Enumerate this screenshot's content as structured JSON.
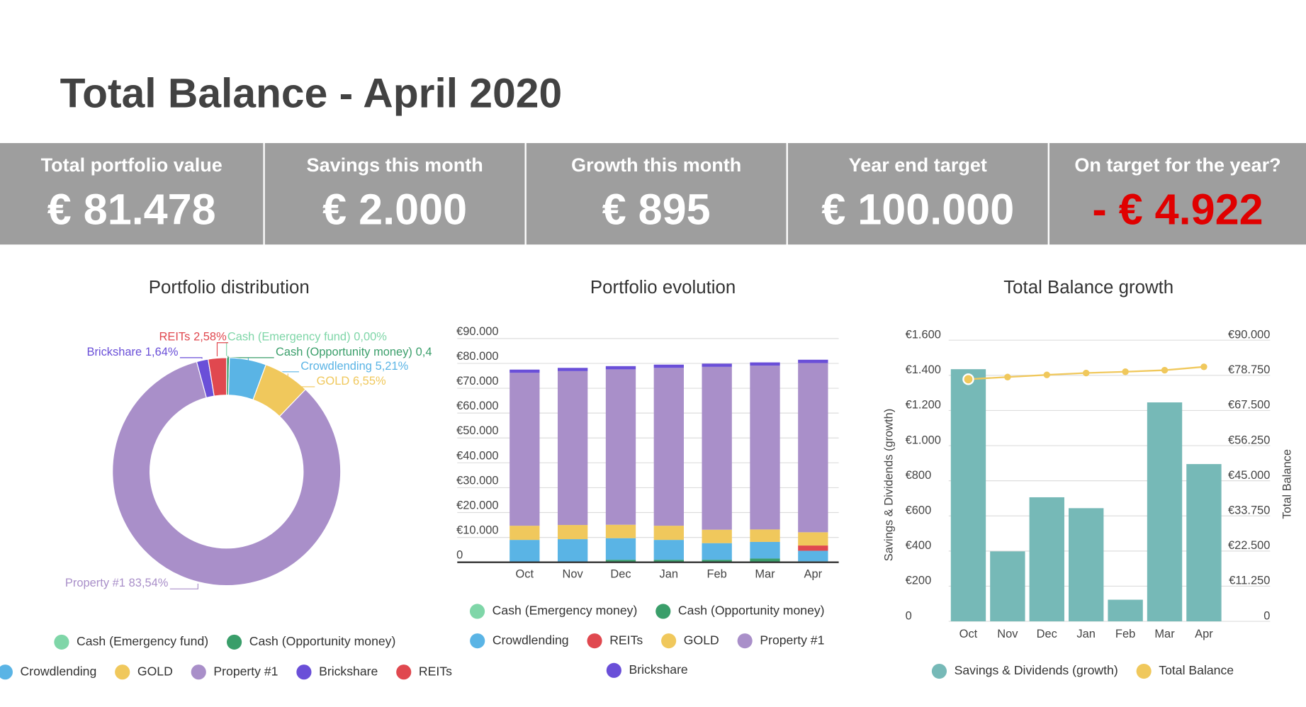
{
  "header": {
    "title": "Total Balance - April 2020"
  },
  "kpis": [
    {
      "label": "Total portfolio value",
      "value": "€ 81.478"
    },
    {
      "label": "Savings this month",
      "value": "€ 2.000"
    },
    {
      "label": "Growth this month",
      "value": "€ 895"
    },
    {
      "label": "Year end target",
      "value": "€ 100.000"
    },
    {
      "label": "On target for the year?",
      "value": "- € 4.922",
      "color": "#e00000"
    }
  ],
  "chart_data": [
    {
      "type": "pie",
      "donut": true,
      "title": "Portfolio distribution",
      "categories": [
        "Cash (Emergency fund)",
        "Cash (Opportunity money)",
        "Crowdlending",
        "GOLD",
        "Property #1",
        "Brickshare",
        "REITs"
      ],
      "values": [
        0,
        0.4,
        5.21,
        6.55,
        83.54,
        1.64,
        2.58
      ],
      "value_labels": [
        "0,00%",
        "0,4",
        "5,21%",
        "6,55%",
        "83,54%",
        "1,64%",
        "2,58%"
      ],
      "colors": [
        "#7fd6a8",
        "#3a9e6a",
        "#5ab4e5",
        "#f0c85c",
        "#a98fc9",
        "#6a4fd8",
        "#e0484f"
      ]
    },
    {
      "type": "bar",
      "stacked": true,
      "title": "Portfolio evolution",
      "categories": [
        "Oct",
        "Nov",
        "Dec",
        "Jan",
        "Feb",
        "Mar",
        "Apr"
      ],
      "ylim": [
        0,
        90000
      ],
      "yticks": [
        0,
        {
          "value": 10000,
          "label": "€10.000"
        },
        {
          "value": 20000,
          "label": "€20.000"
        },
        {
          "value": 30000,
          "label": "€30.000"
        },
        {
          "value": 40000,
          "label": "€40.000"
        },
        {
          "value": 50000,
          "label": "€50.000"
        },
        {
          "value": 60000,
          "label": "€60.000"
        },
        {
          "value": 70000,
          "label": "€70.000"
        },
        {
          "value": 80000,
          "label": "€80.000"
        },
        {
          "value": 90000,
          "label": "€90.000"
        }
      ],
      "grid": true,
      "series": [
        {
          "name": "Cash (Emergency money)",
          "color": "#7fd6a8",
          "values": [
            0,
            0,
            0,
            0,
            0,
            0,
            0
          ]
        },
        {
          "name": "Cash (Opportunity money)",
          "color": "#3a9e6a",
          "values": [
            0,
            0,
            1000,
            1000,
            1000,
            1500,
            390
          ]
        },
        {
          "name": "Crowdlending",
          "color": "#5ab4e5",
          "values": [
            9000,
            9300,
            8700,
            8000,
            6700,
            6700,
            4245
          ]
        },
        {
          "name": "REITs",
          "color": "#e0484f",
          "values": [
            0,
            0,
            0,
            0,
            0,
            0,
            2102
          ]
        },
        {
          "name": "GOLD",
          "color": "#f0c85c",
          "values": [
            5700,
            5700,
            5400,
            5700,
            5400,
            5000,
            5337
          ]
        },
        {
          "name": "Property #1",
          "color": "#a98fc9",
          "values": [
            61500,
            61900,
            62500,
            63500,
            65500,
            65900,
            68067
          ]
        },
        {
          "name": "Brickshare",
          "color": "#6a4fd8",
          "values": [
            1300,
            1300,
            1300,
            1300,
            1300,
            1300,
            1336
          ]
        }
      ]
    },
    {
      "type": "combo",
      "title": "Total Balance growth",
      "categories": [
        "Oct",
        "Nov",
        "Dec",
        "Jan",
        "Feb",
        "Mar",
        "Apr"
      ],
      "ylabel": "Savings & Dividends (growth)",
      "y2label": "Total Balance",
      "ylim": [
        0,
        1600
      ],
      "yticks": [
        0,
        {
          "value": 200,
          "label": "€200"
        },
        {
          "value": 400,
          "label": "€400"
        },
        {
          "value": 600,
          "label": "€600"
        },
        {
          "value": 800,
          "label": "€800"
        },
        {
          "value": 1000,
          "label": "€1.000"
        },
        {
          "value": 1200,
          "label": "€1.200"
        },
        {
          "value": 1400,
          "label": "€1.400"
        },
        {
          "value": 1600,
          "label": "€1.600"
        }
      ],
      "y2lim": [
        0,
        90000
      ],
      "y2ticks": [
        0,
        {
          "value": 11250,
          "label": "€11.250"
        },
        {
          "value": 22500,
          "label": "€22.500"
        },
        {
          "value": 33750,
          "label": "€33.750"
        },
        {
          "value": 45000,
          "label": "€45.000"
        },
        {
          "value": 56250,
          "label": "€56.250"
        },
        {
          "value": 67500,
          "label": "€67.500"
        },
        {
          "value": 78750,
          "label": "€78.750"
        },
        {
          "value": 90000,
          "label": "€90.000"
        }
      ],
      "grid": true,
      "series": [
        {
          "name": "Savings & Dividends (growth)",
          "type": "bar",
          "color": "#76b9b7",
          "values": [
            1435,
            398,
            706,
            644,
            123,
            1246,
            895
          ]
        },
        {
          "name": "Total Balance",
          "type": "line",
          "axis": "y2",
          "color": "#f0c85c",
          "values": [
            77500,
            78200,
            78900,
            79500,
            79900,
            80400,
            81478
          ]
        }
      ]
    }
  ]
}
